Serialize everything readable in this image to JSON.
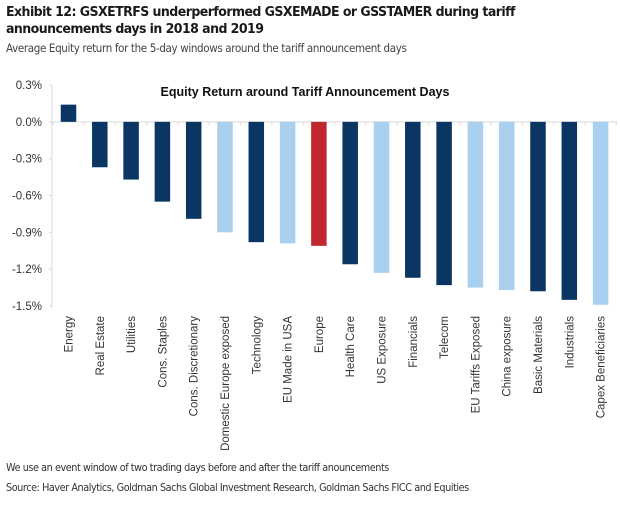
{
  "header": {
    "title": "Exhibit 12: GSXETRFS underperformed GSXEMADE or GSSTAMER during tariff announcements days in 2018 and 2019",
    "subtitle": "Average Equity return for the 5-day windows around the tariff announcement days"
  },
  "footer": {
    "note": "We use an event window of two trading days before and after the tariff anouncements",
    "source": "Source: Haver Analytics, Goldman Sachs Global Investment Research, Goldman Sachs FICC and Equities"
  },
  "colors": {
    "dark": "#0b3563",
    "light": "#a9d0ef",
    "highlight": "#c0282d",
    "axis": "#d9d9d9"
  },
  "chart_data": {
    "type": "bar",
    "title": "Equity Return around Tariff Announcement Days",
    "xlabel": "",
    "ylabel": "",
    "ylim": [
      -1.5,
      0.3
    ],
    "yticks": [
      0.3,
      0.0,
      -0.3,
      -0.6,
      -0.9,
      -1.2,
      -1.5
    ],
    "ytick_labels": [
      "0.3%",
      "0.0%",
      "-0.3%",
      "-0.6%",
      "-0.9%",
      "-1.2%",
      "-1.5%"
    ],
    "unit": "%",
    "grid": false,
    "legend": "none",
    "categories": [
      "Energy",
      "Real Estate",
      "Utilities",
      "Cons. Staples",
      "Cons. Discretionary",
      "Domestic Europe exposed",
      "Technology",
      "EU Made in USA",
      "Europe",
      "Health Care",
      "US Exposure",
      "Financials",
      "Telecom",
      "EU Tariffs Exposed",
      "China exposure",
      "Basic Materials",
      "Industrials",
      "Capex Beneficiaries"
    ],
    "values": [
      0.14,
      -0.37,
      -0.47,
      -0.65,
      -0.79,
      -0.9,
      -0.98,
      -0.99,
      -1.01,
      -1.16,
      -1.23,
      -1.27,
      -1.33,
      -1.35,
      -1.37,
      -1.38,
      -1.45,
      -1.49
    ],
    "bar_colors": [
      "dark",
      "dark",
      "dark",
      "dark",
      "dark",
      "light",
      "dark",
      "light",
      "highlight",
      "dark",
      "light",
      "dark",
      "dark",
      "light",
      "light",
      "dark",
      "dark",
      "light"
    ]
  }
}
